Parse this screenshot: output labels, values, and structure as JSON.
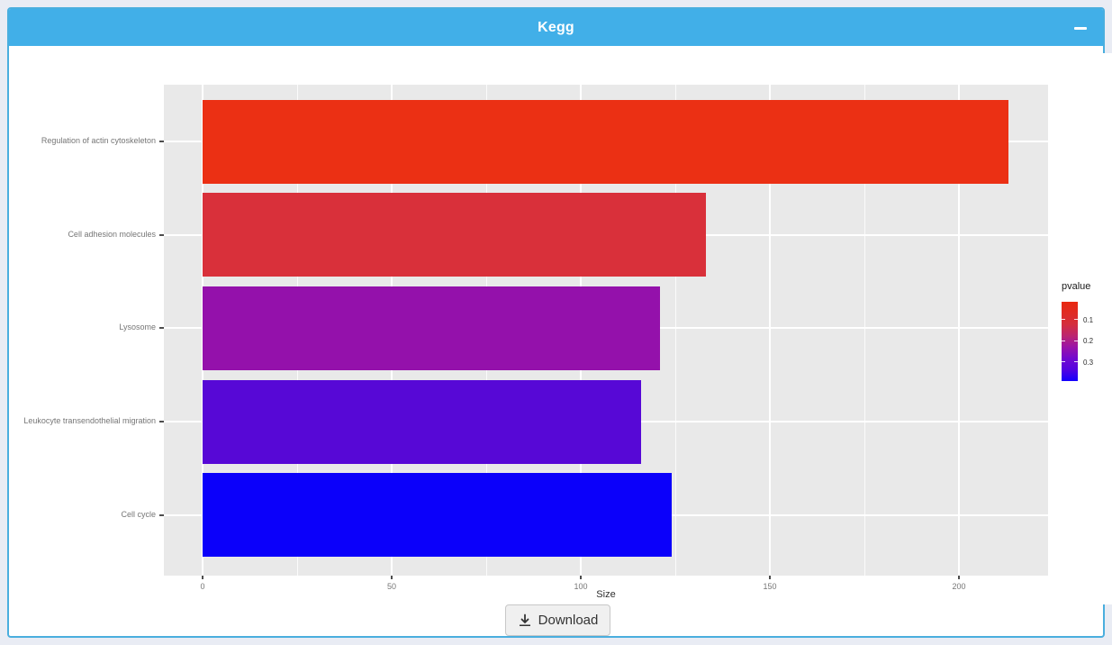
{
  "window": {
    "title": "Kegg",
    "minimize_icon": "minus"
  },
  "chart_data": {
    "type": "bar",
    "orientation": "horizontal",
    "title": "",
    "xlabel": "Size",
    "ylabel": "",
    "categories": [
      "Regulation of actin cytoskeleton",
      "Cell adhesion molecules",
      "Lysosome",
      "Leukocyte transendothelial migration",
      "Cell cycle"
    ],
    "values": [
      213,
      133,
      121,
      116,
      124
    ],
    "bar_colors": [
      "#eb3014",
      "#d9303a",
      "#9411ab",
      "#5708d6",
      "#0b00fa"
    ],
    "pvalues_estimated_from_color": [
      0.02,
      0.08,
      0.22,
      0.31,
      0.39
    ],
    "xlim": [
      -11,
      224
    ],
    "x_ticks": [
      0,
      50,
      100,
      150,
      200
    ],
    "x_minor_ticks": [
      25,
      75,
      125,
      175
    ],
    "grid": true,
    "panel_bg": "#e9e9e9",
    "legend": {
      "title": "pvalue",
      "position": "right",
      "ticks": [
        0.1,
        0.2,
        0.3
      ],
      "domain": [
        0.015,
        0.39
      ],
      "gradient": [
        "#e9280f",
        "#e02b24",
        "#d42e3e",
        "#bc2670",
        "#9a13a8",
        "#7209cf",
        "#5403e0",
        "#1400fd"
      ]
    }
  },
  "footer": {
    "download_label": "Download"
  }
}
